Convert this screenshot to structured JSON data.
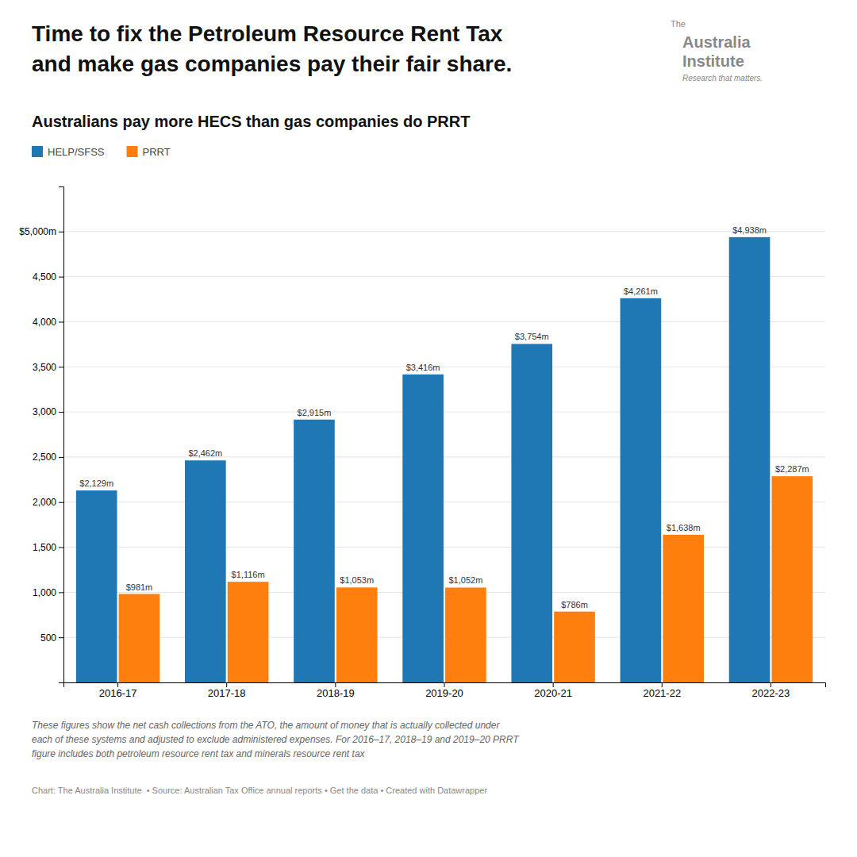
{
  "chart_data": {
    "type": "bar",
    "title": "Australians pay more HECS than gas companies do PRRT",
    "annotations": [
      "Time to fix the Petroleum Resource Rent Tax",
      "and make gas companies pay their fair share.",
      "The",
      "Australia",
      "Institute",
      "Research that matters.",
      "These figures show the net cash collections from the ATO, the amount of money that is actually collected under",
      "each of these systems and adjusted to exclude administered expenses. For 2016–17, 2018–19 and 2019–20 PRRT",
      "figure includes both petroleum resource rent tax and minerals resource rent tax",
      "Chart: The Australia Institute  • Source: ",
      "Australian Tax Office annual reports",
      " • ",
      "Get the data",
      " • Created with ",
      "Datawrapper"
    ],
    "categories": [
      "2016-17",
      "2017-18",
      "2018-19",
      "2019-20",
      "2020-21",
      "2021-22",
      "2022-23"
    ],
    "series": [
      {
        "name": "HELP/SFSS",
        "values": [
          2129,
          2462,
          2915,
          3416,
          3754,
          4261,
          4938
        ],
        "value_labels": [
          "$2,129m",
          "$2,462m",
          "$2,915m",
          "$3,416m",
          "$3,754m",
          "$4,261m",
          "$4,938m"
        ]
      },
      {
        "name": "PRRT",
        "values": [
          981,
          1116,
          1053,
          1052,
          786,
          1638,
          2287
        ],
        "value_labels": [
          "$981m",
          "$1,116m",
          "$1,053m",
          "$1,052m",
          "$786m",
          "$1,638m",
          "$2,287m"
        ]
      }
    ],
    "ylim": [
      0,
      5500
    ],
    "yticks": [
      500,
      {
        "value": 1000,
        "label": "1,000"
      },
      {
        "value": 1500,
        "label": "1,500"
      },
      {
        "value": 2000,
        "label": "2,000"
      },
      {
        "value": 2500,
        "label": "2,500"
      },
      {
        "value": 3000,
        "label": "3,000"
      },
      {
        "value": 3500,
        "label": "3,500"
      },
      {
        "value": 4000,
        "label": "4,000"
      },
      {
        "value": 4500,
        "label": "4,500"
      },
      {
        "value": 5000,
        "label": "$5,000m"
      }
    ],
    "grid": true,
    "legend": "top-left",
    "data_labels": true
  }
}
